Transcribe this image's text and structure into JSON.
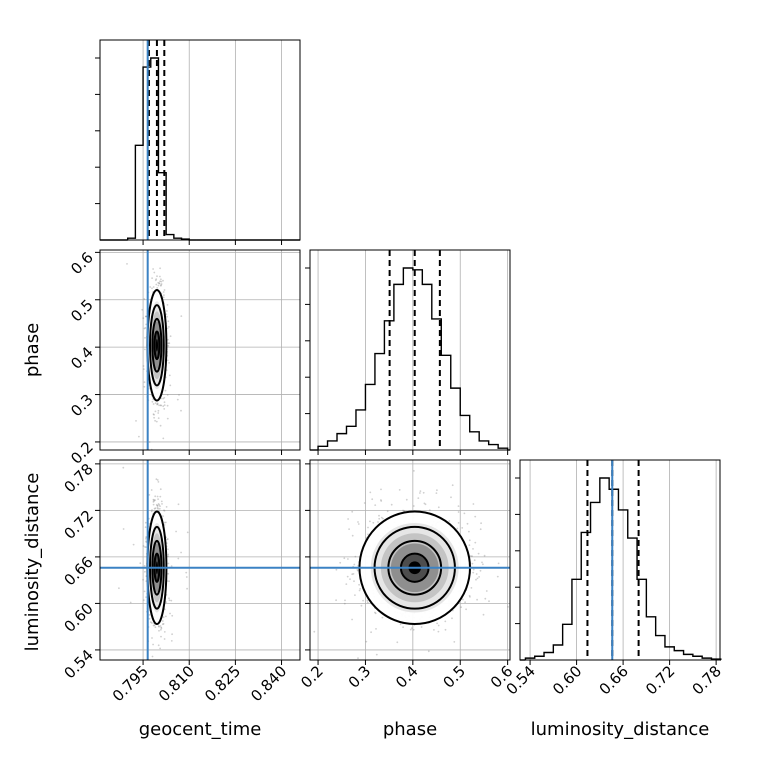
{
  "chart_data": {
    "type": "corner",
    "parameters": [
      "geocent_time",
      "phase",
      "luminosity_distance"
    ],
    "axis_labels": {
      "geocent_time": "geocent_time",
      "phase": "phase",
      "luminosity_distance": "luminosity_distance"
    },
    "ranges": {
      "geocent_time": [
        0.781,
        0.846
      ],
      "phase": [
        0.183,
        0.605
      ],
      "luminosity_distance": [
        0.527,
        0.785
      ]
    },
    "ticks": {
      "geocent_time": [
        "0.795",
        "0.810",
        "0.825",
        "0.840"
      ],
      "phase": [
        "0.2",
        "0.3",
        "0.4",
        "0.5",
        "0.6"
      ],
      "luminosity_distance": [
        "0.54",
        "0.60",
        "0.66",
        "0.72",
        "0.78"
      ]
    },
    "truth": {
      "geocent_time": 0.7965,
      "phase": null,
      "luminosity_distance": 0.646
    },
    "quantiles": {
      "geocent_time": [
        0.7969,
        0.7995,
        0.8019
      ],
      "phase": [
        0.351,
        0.404,
        0.457
      ],
      "luminosity_distance": [
        0.614,
        0.646,
        0.68
      ]
    },
    "histograms": {
      "geocent_time": {
        "edges": [
          0.79,
          0.7925,
          0.795,
          0.7975,
          0.8,
          0.8025,
          0.805,
          0.8075,
          0.81,
          0.8125
        ],
        "counts": [
          0.01,
          0.52,
          0.95,
          1.0,
          0.37,
          0.03,
          0.01,
          0.005,
          0.0
        ]
      },
      "phase": {
        "edges": [
          0.2,
          0.22,
          0.24,
          0.26,
          0.28,
          0.3,
          0.32,
          0.34,
          0.36,
          0.38,
          0.4,
          0.42,
          0.44,
          0.46,
          0.48,
          0.5,
          0.52,
          0.54,
          0.56,
          0.58,
          0.6
        ],
        "counts": [
          0.02,
          0.05,
          0.09,
          0.13,
          0.22,
          0.36,
          0.53,
          0.71,
          0.91,
          1.0,
          0.99,
          0.91,
          0.72,
          0.52,
          0.34,
          0.19,
          0.1,
          0.05,
          0.03,
          0.01
        ]
      },
      "luminosity_distance": {
        "edges": [
          0.534,
          0.546,
          0.558,
          0.57,
          0.582,
          0.594,
          0.606,
          0.618,
          0.63,
          0.642,
          0.654,
          0.666,
          0.678,
          0.69,
          0.702,
          0.714,
          0.726,
          0.738,
          0.75,
          0.762,
          0.774,
          0.786
        ],
        "counts": [
          0.01,
          0.02,
          0.04,
          0.08,
          0.19,
          0.43,
          0.68,
          0.84,
          0.97,
          0.91,
          0.8,
          0.65,
          0.43,
          0.23,
          0.13,
          0.07,
          0.05,
          0.03,
          0.02,
          0.01,
          0.005
        ]
      }
    },
    "joint": {
      "phase_vs_geocent_time": {
        "center": [
          0.7995,
          0.404
        ],
        "sigma": [
          0.0014,
          0.053
        ]
      },
      "luminosity_distance_vs_geocent_time": {
        "center": [
          0.7995,
          0.646
        ],
        "sigma": [
          0.0014,
          0.033
        ]
      },
      "luminosity_distance_vs_phase": {
        "center": [
          0.404,
          0.646
        ],
        "sigma": [
          0.053,
          0.033
        ]
      }
    }
  }
}
